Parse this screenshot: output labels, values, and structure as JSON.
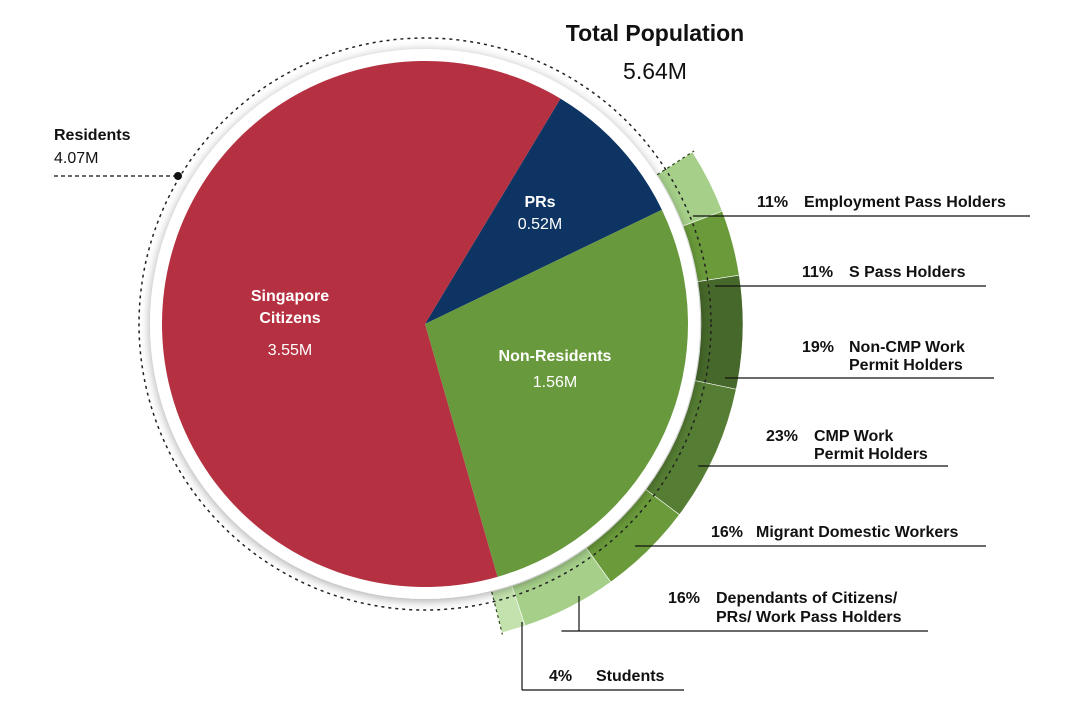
{
  "chart_data": {
    "type": "pie",
    "title": "Total Population",
    "total": "5.64M",
    "residents_group": {
      "label": "Residents",
      "value": "4.07M"
    },
    "slices": [
      {
        "name": "Singapore Citizens",
        "line1": "Singapore",
        "line2": "Citizens",
        "value": 3.55,
        "value_label": "3.55M",
        "color": "#b53141"
      },
      {
        "name": "PRs",
        "line1": "PRs",
        "line2": "",
        "value": 0.52,
        "value_label": "0.52M",
        "color": "#0d3462"
      },
      {
        "name": "Non-Residents",
        "line1": "Non-Residents",
        "line2": "",
        "value": 1.56,
        "value_label": "1.56M",
        "color": "#69993d"
      }
    ],
    "non_resident_breakdown": [
      {
        "pct": "11%",
        "line1": "Employment Pass Holders",
        "line2": "",
        "value": 11,
        "color": "#a6d08a"
      },
      {
        "pct": "11%",
        "line1": "S Pass Holders",
        "line2": "",
        "value": 11,
        "color": "#6a9a3a"
      },
      {
        "pct": "19%",
        "line1": "Non-CMP Work",
        "line2": "Permit Holders",
        "value": 19,
        "color": "#46682a"
      },
      {
        "pct": "23%",
        "line1": "CMP Work",
        "line2": "Permit Holders",
        "value": 23,
        "color": "#557d33"
      },
      {
        "pct": "16%",
        "line1": "Migrant Domestic Workers",
        "line2": "",
        "value": 16,
        "color": "#6a9a3a"
      },
      {
        "pct": "16%",
        "line1": "Dependants of Citizens/",
        "line2": "PRs/ Work Pass Holders",
        "value": 16,
        "color": "#a6d08a"
      },
      {
        "pct": "4%",
        "line1": "Students",
        "line2": "",
        "value": 4,
        "color": "#c3e2ad"
      }
    ]
  }
}
